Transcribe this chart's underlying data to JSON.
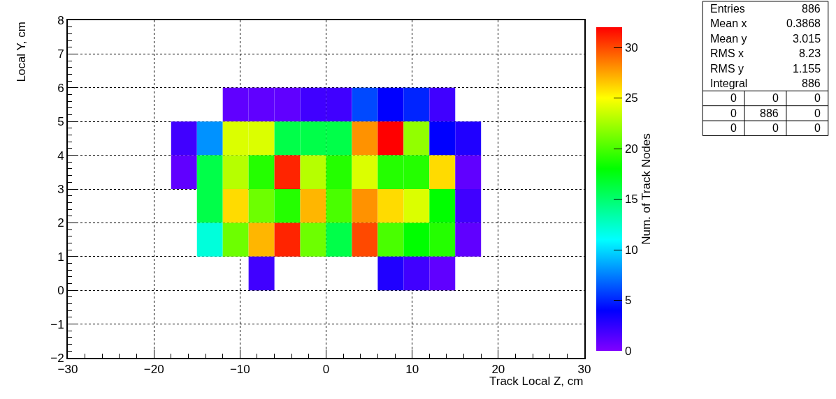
{
  "chart_data": {
    "type": "heatmap",
    "xlabel": "Track Local Z, cm",
    "ylabel": "Local Y, cm",
    "clabel": "Num. of Track Nodes",
    "x": [
      -16.5,
      -13.5,
      -10.5,
      -7.5,
      -4.5,
      -1.5,
      1.5,
      4.5,
      7.5,
      10.5,
      13.5,
      16.5
    ],
    "y": [
      5.5,
      4.5,
      3.5,
      2.5,
      1.5,
      0.5
    ],
    "cells": [
      [
        null,
        null,
        1,
        1,
        1,
        2,
        2,
        6,
        4,
        5,
        2,
        null
      ],
      [
        2,
        8,
        24,
        24,
        16,
        16,
        16,
        28,
        32,
        22,
        4,
        3
      ],
      [
        1,
        16,
        23,
        19,
        31,
        23,
        19,
        24,
        19,
        19,
        26,
        1
      ],
      [
        null,
        16,
        26,
        21,
        19,
        27,
        20,
        28,
        26,
        24,
        18,
        2
      ],
      [
        null,
        12,
        21,
        27,
        31,
        21,
        16,
        30,
        20,
        18,
        19,
        1
      ],
      [
        null,
        null,
        null,
        2,
        null,
        null,
        null,
        null,
        3,
        2,
        1,
        null
      ]
    ],
    "xlim": [
      -30,
      30
    ],
    "xticks": [
      -30,
      -20,
      -10,
      0,
      10,
      20,
      30
    ],
    "ylim": [
      -2,
      8
    ],
    "yticks": [
      -2,
      -1,
      0,
      1,
      2,
      3,
      4,
      5,
      6,
      7,
      8
    ],
    "clim": [
      0,
      32
    ],
    "cticks": [
      0,
      5,
      10,
      15,
      20,
      25,
      30
    ],
    "grid": true,
    "annotations": [
      "Entries",
      "886",
      "Mean x",
      "0.3868",
      "Mean y",
      "3.015",
      "RMS x",
      "8.23",
      "RMS y",
      "1.155",
      "Integral",
      "886",
      "0",
      "0",
      "0",
      "0",
      "886",
      "0",
      "0",
      "0",
      "0"
    ]
  }
}
